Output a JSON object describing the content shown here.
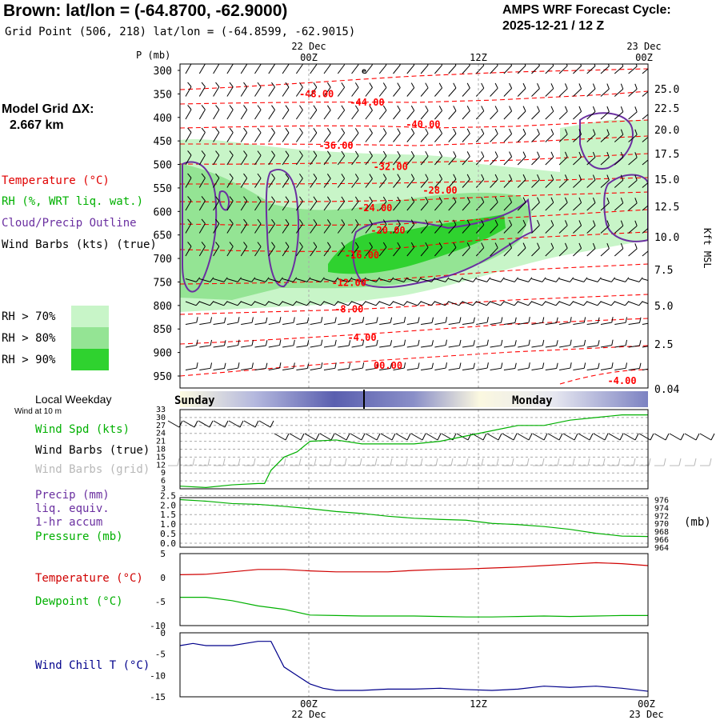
{
  "header": {
    "title": "Brown:  lat/lon = (-64.8700, -62.9000)",
    "subtitle": "Grid Point (506, 218) lat/lon = (-64.8599, -62.9015)",
    "forecast_line1": "AMPS WRF Forecast Cycle:",
    "forecast_line2": "2025-12-21 / 12  Z"
  },
  "side": {
    "model_grid_l1": "Model Grid ΔX:",
    "model_grid_l2": "2.667 km",
    "temperature": "Temperature (°C)",
    "rh": "RH (%, WRT liq. wat.)",
    "cloud": "Cloud/Precip Outline",
    "barbs": "Wind Barbs (kts) (true)",
    "rh70": "RH > 70%",
    "rh80": "RH > 80%",
    "rh90": "RH > 90%",
    "local_weekday": "Local Weekday",
    "wind10m": "Wind at 10 m",
    "wind_spd": "Wind Spd (kts)",
    "barbs_true": "Wind Barbs (true)",
    "barbs_grid": "Wind Barbs (grid)",
    "precip": "Precip (mm)",
    "liq": "liq. equiv.",
    "accum": "1-hr accum",
    "pressure": "Pressure (mb)",
    "mb_unit": "(mb)",
    "temp2": "Temperature (°C)",
    "dew": "Dewpoint (°C)",
    "chill": "Wind Chill T (°C)",
    "p_axis": "P (mb)",
    "kft_axis": "Kft MSL"
  },
  "colors": {
    "temp": "#ff0000",
    "green": "#00b000",
    "purple": "#6a2fa0",
    "blue": "#00008b",
    "rh70": "#c8f5c8",
    "rh80": "#94e494",
    "rh90": "#2fd22f",
    "grey": "#b8b8b8"
  },
  "time_axis": {
    "top_dates": [
      "22 Dec",
      "23 Dec"
    ],
    "ticks": [
      "00Z",
      "12Z",
      "00Z"
    ],
    "bottom_dates": [
      "22 Dec",
      "23 Dec"
    ]
  },
  "weekday": {
    "left": "Sunday",
    "right": "Monday"
  },
  "chart_data": [
    {
      "type": "contour",
      "name": "time-height cross section",
      "x": "hours since cycle start (0-36)",
      "pressure_ticks": [
        300,
        350,
        400,
        450,
        500,
        550,
        600,
        650,
        700,
        750,
        800,
        850,
        900,
        950
      ],
      "height_ticks": [
        "25.0",
        "22.5",
        "20.0",
        "17.5",
        "15.0",
        "12.5",
        "10.0",
        "7.5",
        "5.0",
        "2.5",
        "0.04"
      ],
      "temperature_contours": [
        {
          "label": "-48.00",
          "x": 10.5,
          "p": 350
        },
        {
          "label": "-44.00",
          "x": 14.4,
          "p": 368
        },
        {
          "label": "-40.00",
          "x": 18.7,
          "p": 415
        },
        {
          "label": "-36.00",
          "x": 12.0,
          "p": 460
        },
        {
          "label": "-32.00",
          "x": 16.2,
          "p": 505
        },
        {
          "label": "-28.00",
          "x": 20.0,
          "p": 555
        },
        {
          "label": "-24.00",
          "x": 15.0,
          "p": 593
        },
        {
          "label": "-20.00",
          "x": 16.0,
          "p": 640
        },
        {
          "label": "-16.00",
          "x": 14.0,
          "p": 693
        },
        {
          "label": "-12.00",
          "x": 13.0,
          "p": 752
        },
        {
          "label": "-8.00",
          "x": 13.0,
          "p": 808
        },
        {
          "label": "-4.00",
          "x": 14.0,
          "p": 868
        },
        {
          "label": "00.00",
          "x": 16.0,
          "p": 928
        },
        {
          "label": "-4.00",
          "x": 34.0,
          "p": 960
        }
      ]
    },
    {
      "type": "line",
      "name": "10m wind",
      "x": [
        0,
        2,
        4,
        6,
        6.5,
        7,
        8,
        9,
        10,
        12,
        14,
        16,
        18,
        20,
        22,
        24,
        26,
        28,
        30,
        32,
        34,
        36
      ],
      "series": [
        {
          "name": "Wind Spd (kts)",
          "values": [
            4,
            3.5,
            4.5,
            5,
            5,
            10,
            15,
            17,
            21,
            21.5,
            20,
            20,
            20,
            21,
            23,
            25,
            27,
            27,
            29,
            30,
            31,
            31
          ]
        }
      ],
      "ylim": [
        3,
        33
      ],
      "yticks": [
        3,
        6,
        9,
        12,
        15,
        18,
        21,
        24,
        27,
        30,
        33
      ]
    },
    {
      "type": "line",
      "name": "precip/pressure",
      "x": [
        0,
        2,
        4,
        6,
        8,
        10,
        12,
        14,
        16,
        18,
        20,
        22,
        24,
        26,
        28,
        30,
        32,
        34,
        36
      ],
      "series": [
        {
          "name": "Pressure (mb)",
          "values": [
            976,
            975.6,
            975,
            974.8,
            974.3,
            973.7,
            973,
            972.5,
            971.8,
            971.3,
            971,
            970.8,
            970,
            969.7,
            969.2,
            968.5,
            967.5,
            966.8,
            966.7
          ]
        }
      ],
      "yticks_left": [
        "0.0",
        "0.5",
        "1.0",
        "1.5",
        "2.0",
        "2.5"
      ],
      "yticks_right": [
        964,
        966,
        968,
        970,
        972,
        974,
        976
      ],
      "ylim_right": [
        964,
        976.5
      ]
    },
    {
      "type": "line",
      "name": "temperature/dewpoint",
      "x": [
        0,
        2,
        4,
        6,
        8,
        10,
        12,
        14,
        16,
        18,
        20,
        22,
        24,
        26,
        28,
        30,
        32,
        34,
        36
      ],
      "series": [
        {
          "name": "Temperature (°C)",
          "values": [
            0.6,
            0.7,
            1.2,
            1.7,
            1.7,
            1.4,
            1.2,
            1.2,
            1.2,
            1.5,
            1.7,
            1.8,
            2.0,
            2.2,
            2.5,
            2.8,
            3.1,
            2.9,
            2.5
          ]
        },
        {
          "name": "Dewpoint (°C)",
          "values": [
            -4.1,
            -4.1,
            -4.8,
            -5.9,
            -6.6,
            -7.8,
            -7.9,
            -8.0,
            -8.0,
            -8.0,
            -8.1,
            -8.2,
            -8.2,
            -8.1,
            -8.0,
            -8.1,
            -8.0,
            -7.9,
            -7.9
          ]
        }
      ],
      "ylim": [
        -10,
        5
      ],
      "yticks": [
        5,
        0,
        -5,
        -10
      ]
    },
    {
      "type": "line",
      "name": "wind chill",
      "x": [
        0,
        1,
        2,
        3,
        4,
        5,
        6,
        7,
        8,
        9,
        10,
        11,
        12,
        14,
        16,
        18,
        20,
        22,
        24,
        26,
        28,
        30,
        32,
        34,
        36
      ],
      "series": [
        {
          "name": "Wind Chill T (°C)",
          "values": [
            -3,
            -2.5,
            -3,
            -3,
            -3,
            -2.5,
            -2,
            -2,
            -8,
            -10,
            -12,
            -13,
            -13.5,
            -13.5,
            -13.2,
            -13.2,
            -13.0,
            -13.3,
            -13.5,
            -13.2,
            -12.5,
            -12.8,
            -12.5,
            -13,
            -13.7
          ]
        }
      ],
      "ylim": [
        -15,
        0
      ],
      "yticks": [
        0,
        -5,
        -10,
        -15
      ]
    }
  ]
}
